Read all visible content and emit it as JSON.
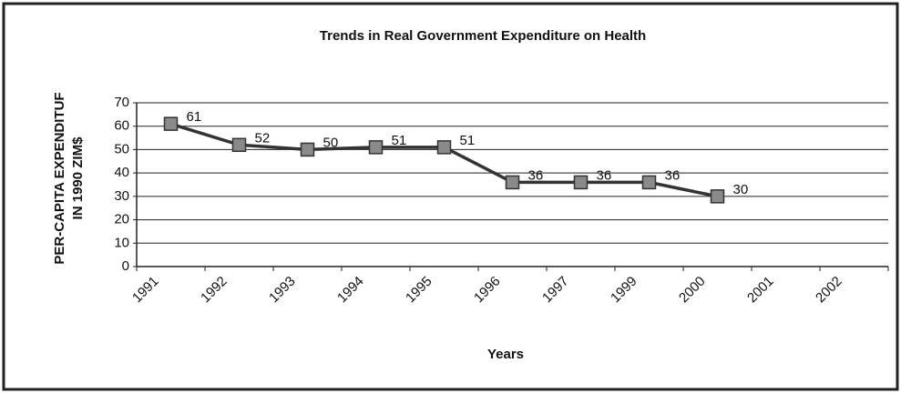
{
  "chart_data": {
    "type": "line",
    "title": "Trends in Real Government Expenditure on Health",
    "y_label": [
      "PER-CAPITA EXPENDITUF",
      "IN 1990 ZIM$"
    ],
    "x_label": "Years",
    "categories": [
      "1991",
      "1992",
      "1993",
      "1994",
      "1995",
      "1996",
      "1997",
      "1999",
      "2000",
      "2001",
      "2002"
    ],
    "values": [
      61,
      52,
      50,
      51,
      51,
      36,
      36,
      36,
      30,
      null,
      null
    ],
    "color": "#333333",
    "marker_color": "#8a8a8a",
    "ylim": [
      0,
      70
    ],
    "yticks": [
      0,
      10,
      20,
      30,
      40,
      50,
      60,
      70
    ],
    "grid": true
  }
}
